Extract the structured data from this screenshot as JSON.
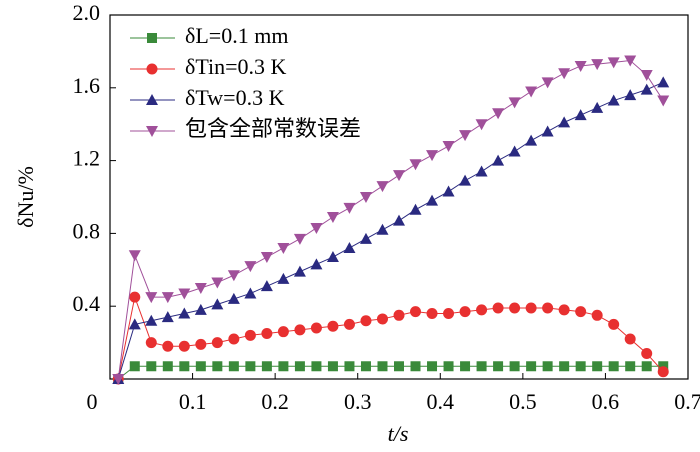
{
  "chart_data": {
    "type": "line",
    "x_label": "t/s",
    "y_label": "δNu/%",
    "x": [
      0.01,
      0.03,
      0.05,
      0.07,
      0.09,
      0.11,
      0.13,
      0.15,
      0.17,
      0.19,
      0.21,
      0.23,
      0.25,
      0.27,
      0.29,
      0.31,
      0.33,
      0.35,
      0.37,
      0.39,
      0.41,
      0.43,
      0.45,
      0.47,
      0.49,
      0.51,
      0.53,
      0.55,
      0.57,
      0.59,
      0.61,
      0.63,
      0.65,
      0.67
    ],
    "series": [
      {
        "name": "δL=0.1 mm",
        "color": "#3a8a3a",
        "marker": "square",
        "values": [
          0,
          0.07,
          0.07,
          0.07,
          0.07,
          0.07,
          0.07,
          0.07,
          0.07,
          0.07,
          0.07,
          0.07,
          0.07,
          0.07,
          0.07,
          0.07,
          0.07,
          0.07,
          0.07,
          0.07,
          0.07,
          0.07,
          0.07,
          0.07,
          0.07,
          0.07,
          0.07,
          0.07,
          0.07,
          0.07,
          0.07,
          0.07,
          0.07,
          0.07
        ]
      },
      {
        "name": "δTin=0.3 K",
        "color": "#e83030",
        "marker": "circle",
        "values": [
          0,
          0.45,
          0.2,
          0.18,
          0.18,
          0.19,
          0.2,
          0.22,
          0.24,
          0.25,
          0.26,
          0.27,
          0.28,
          0.29,
          0.3,
          0.32,
          0.33,
          0.35,
          0.37,
          0.36,
          0.36,
          0.37,
          0.38,
          0.39,
          0.39,
          0.39,
          0.39,
          0.38,
          0.37,
          0.35,
          0.3,
          0.22,
          0.14,
          0.04
        ]
      },
      {
        "name": "δTw=0.3 K",
        "color": "#2a2a80",
        "marker": "triangle",
        "values": [
          0,
          0.3,
          0.32,
          0.34,
          0.36,
          0.38,
          0.41,
          0.44,
          0.47,
          0.51,
          0.55,
          0.59,
          0.63,
          0.67,
          0.72,
          0.77,
          0.82,
          0.87,
          0.93,
          0.98,
          1.03,
          1.09,
          1.14,
          1.2,
          1.25,
          1.31,
          1.36,
          1.41,
          1.45,
          1.49,
          1.53,
          1.56,
          1.59,
          1.63
        ]
      },
      {
        "name": "包含全部常数误差",
        "color": "#a0509a",
        "marker": "triangle-down",
        "values": [
          0,
          0.68,
          0.45,
          0.45,
          0.47,
          0.5,
          0.53,
          0.57,
          0.62,
          0.67,
          0.72,
          0.77,
          0.83,
          0.89,
          0.94,
          1.0,
          1.06,
          1.12,
          1.18,
          1.23,
          1.28,
          1.34,
          1.4,
          1.46,
          1.52,
          1.58,
          1.63,
          1.68,
          1.72,
          1.73,
          1.74,
          1.75,
          1.67,
          1.53
        ]
      }
    ],
    "xlim": [
      0,
      0.7
    ],
    "xticks": [
      0,
      0.1,
      0.2,
      0.3,
      0.4,
      0.5,
      0.6,
      0.7
    ],
    "ylim": [
      0,
      2.0
    ],
    "yticks": [
      {
        "value": 0.4,
        "label": "0.4"
      },
      {
        "value": 0.8,
        "label": "0.8"
      },
      {
        "value": 1.2,
        "label": "1.2"
      },
      {
        "value": 1.6,
        "label": "1.6"
      },
      {
        "value": 2.0,
        "label": "2.0"
      }
    ],
    "grid": false,
    "legend": "upper left"
  }
}
